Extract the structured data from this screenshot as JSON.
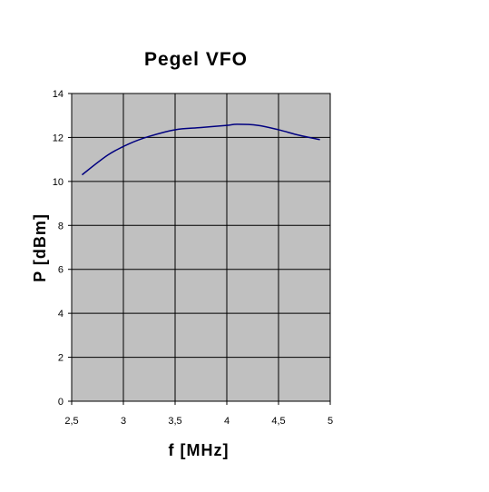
{
  "chart_data": {
    "type": "line",
    "title": "Pegel VFO",
    "xlabel": "f [MHz]",
    "ylabel": "P [dBm]",
    "xlim": [
      2.5,
      5
    ],
    "ylim": [
      0,
      14
    ],
    "x_ticks": [
      "2,5",
      "3",
      "3,5",
      "4",
      "4,5",
      "5"
    ],
    "y_ticks": [
      "0",
      "2",
      "4",
      "6",
      "8",
      "10",
      "12",
      "14"
    ],
    "grid": true,
    "legend": "none",
    "plot_background": "#c0c0c0",
    "line_color": "#000080",
    "series": [
      {
        "x": [
          2.6,
          2.85,
          3.05,
          3.25,
          3.5,
          3.75,
          4.0,
          4.1,
          4.3,
          4.5,
          4.7,
          4.9
        ],
        "y": [
          10.3,
          11.2,
          11.7,
          12.05,
          12.35,
          12.45,
          12.55,
          12.6,
          12.55,
          12.35,
          12.1,
          11.9
        ]
      }
    ]
  }
}
